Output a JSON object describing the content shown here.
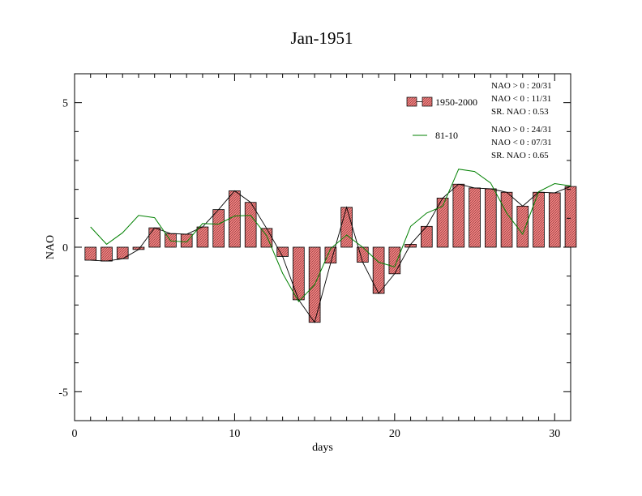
{
  "chart_data": {
    "type": "bar",
    "title": "Jan-1951",
    "xlabel": "days",
    "ylabel": "NAO",
    "xlim": [
      0,
      31
    ],
    "ylim": [
      -6,
      6
    ],
    "xticks": [
      0,
      10,
      20,
      30
    ],
    "xtick_labels": [
      "0",
      "10",
      "20",
      "30"
    ],
    "yticks": [
      5,
      0,
      -5
    ],
    "ytick_labels": [
      "5",
      "0",
      "-5"
    ],
    "grid": false,
    "legend_position": "top-right",
    "colors": {
      "bar_fill": "#f08080",
      "bar_stroke": "#000000",
      "bar_line": "#000000",
      "clim_line": "#008000"
    },
    "days": [
      1,
      2,
      3,
      4,
      5,
      6,
      7,
      8,
      9,
      10,
      11,
      12,
      13,
      14,
      15,
      16,
      17,
      18,
      19,
      20,
      21,
      22,
      23,
      24,
      25,
      26,
      27,
      28,
      29,
      30,
      31
    ],
    "series": [
      {
        "name": "1950-2000",
        "kind": "bar",
        "values": [
          -0.45,
          -0.48,
          -0.4,
          -0.08,
          0.67,
          0.47,
          0.45,
          0.7,
          1.3,
          1.95,
          1.55,
          0.65,
          -0.32,
          -1.82,
          -2.6,
          -0.55,
          1.38,
          -0.52,
          -1.6,
          -0.92,
          0.1,
          0.72,
          1.7,
          2.18,
          2.05,
          2.02,
          1.9,
          1.42,
          1.9,
          1.88,
          2.1
        ]
      },
      {
        "name": "81-10",
        "kind": "line",
        "values": [
          0.7,
          0.1,
          0.5,
          1.1,
          1.02,
          0.22,
          0.18,
          0.82,
          0.8,
          1.08,
          1.1,
          0.4,
          -0.9,
          -1.88,
          -1.3,
          -0.05,
          0.42,
          0.0,
          -0.52,
          -0.68,
          0.72,
          1.18,
          1.42,
          2.7,
          2.62,
          2.22,
          1.18,
          0.45,
          1.92,
          2.2,
          2.12
        ]
      }
    ],
    "stats": [
      {
        "lines": [
          "NAO > 0 : 20/31",
          "NAO < 0 : 11/31",
          "SR. NAO :  0.53"
        ]
      },
      {
        "lines": [
          "NAO > 0 : 24/31",
          "NAO < 0 : 07/31",
          "SR. NAO :  0.65"
        ]
      }
    ]
  }
}
